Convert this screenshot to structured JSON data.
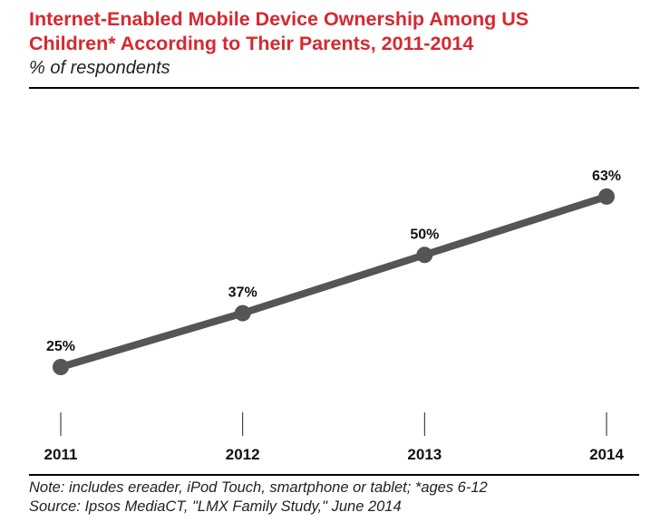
{
  "header": {
    "title_line1": "Internet-Enabled Mobile Device Ownership Among US",
    "title_line2": "Children* According to Their Parents, 2011-2014",
    "subtitle": "% of respondents"
  },
  "footer": {
    "note": "Note: includes ereader, iPod Touch, smartphone or tablet; *ages 6-12",
    "source": "Source: Ipsos MediaCT, \"LMX Family Study,\" June 2014"
  },
  "colors": {
    "title": "#d7282f",
    "line": "#555555",
    "text": "#111111"
  },
  "chart_data": {
    "type": "line",
    "categories": [
      "2011",
      "2012",
      "2013",
      "2014"
    ],
    "values": [
      25,
      37,
      50,
      63
    ],
    "data_labels": [
      "25%",
      "37%",
      "50%",
      "63%"
    ],
    "title": "Internet-Enabled Mobile Device Ownership Among US Children* According to Their Parents, 2011-2014",
    "subtitle": "% of respondents",
    "xlabel": "",
    "ylabel": "",
    "grid": false,
    "legend": "none"
  }
}
